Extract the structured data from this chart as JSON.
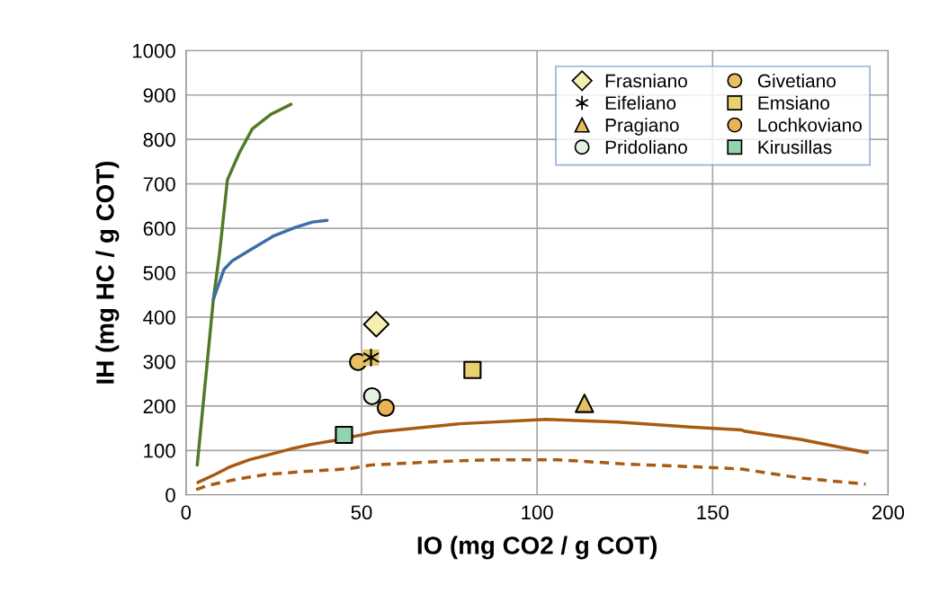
{
  "chart_data": {
    "type": "scatter",
    "xlabel": "IO (mg CO2 / g COT)",
    "ylabel": "IH (mg HC / g COT)",
    "xlim": [
      0,
      200
    ],
    "xticks": [
      0,
      50,
      100,
      150,
      200
    ],
    "ylim": [
      0,
      1000
    ],
    "yticks": [
      0,
      100,
      200,
      300,
      400,
      500,
      600,
      700,
      800,
      900,
      1000
    ],
    "grid": true,
    "legend": "top right",
    "series": [
      {
        "type": "line",
        "color": "#4f7a28",
        "marker": "none",
        "line_style": "solid",
        "x": [
          3.2,
          7.8,
          9.6,
          11.8,
          15.2,
          18.9,
          24.3,
          29.9
        ],
        "values": [
          67,
          440,
          547,
          709,
          770,
          824,
          857,
          879
        ]
      },
      {
        "type": "line",
        "color": "#3c6ea8",
        "marker": "none",
        "line_style": "solid",
        "x": [
          7.8,
          10.8,
          13.2,
          17.4,
          24.8,
          31.1,
          36,
          40.2
        ],
        "values": [
          440,
          507,
          527,
          547,
          582,
          602,
          614,
          618
        ]
      },
      {
        "type": "line",
        "color": "#a85a12",
        "marker": "none",
        "line_style": "solid",
        "x": [
          3.4,
          8.3,
          12.5,
          18.1,
          29.7,
          35.3,
          42.6,
          53.9,
          77.9,
          102.5,
          123,
          144.6,
          158.3,
          159.3,
          175,
          194.1
        ],
        "values": [
          28,
          46,
          63,
          79,
          103,
          113,
          123,
          141,
          160,
          170,
          164,
          152,
          146,
          143,
          125,
          95
        ]
      },
      {
        "type": "line",
        "color": "#a85a12",
        "marker": "none",
        "line_style": "dashed",
        "x": [
          2.9,
          6.6,
          15,
          23,
          32.8,
          46.8,
          52.5,
          72,
          86.8,
          106,
          126,
          145.6,
          158.3,
          175,
          193.6
        ],
        "values": [
          12,
          22,
          36,
          46,
          52,
          59,
          67,
          75,
          79,
          79,
          69,
          63,
          58,
          38,
          24
        ]
      },
      {
        "name": "Frasniano",
        "color": "#f5eeb0",
        "marker": "diamond",
        "x": [
          54.2
        ],
        "values": [
          384
        ]
      },
      {
        "name": "Givetiano",
        "color": "#e9bf5f",
        "marker": "circle",
        "x": [
          49
        ],
        "values": [
          299
        ]
      },
      {
        "name": "Eifeliano",
        "color": "#000000",
        "marker": "cross",
        "x": [
          52.7
        ],
        "values": [
          309
        ]
      },
      {
        "name": "Emsiano",
        "color": "#e8d170",
        "marker": "square",
        "x": [
          81.6
        ],
        "values": [
          281
        ]
      },
      {
        "name": "Pragiano",
        "color": "#e6c060",
        "marker": "triangle",
        "x": [
          113.5
        ],
        "values": [
          206
        ]
      },
      {
        "name": "Lochkoviano",
        "color": "#e8b355",
        "marker": "circle",
        "x": [
          56.9
        ],
        "values": [
          196
        ]
      },
      {
        "name": "Pridoliano",
        "color": "#e3f2e0",
        "marker": "circle",
        "x": [
          53
        ],
        "values": [
          222
        ]
      },
      {
        "name": "Kirusillas",
        "color": "#93d4b0",
        "marker": "square",
        "x": [
          45
        ],
        "values": [
          135
        ]
      }
    ]
  }
}
